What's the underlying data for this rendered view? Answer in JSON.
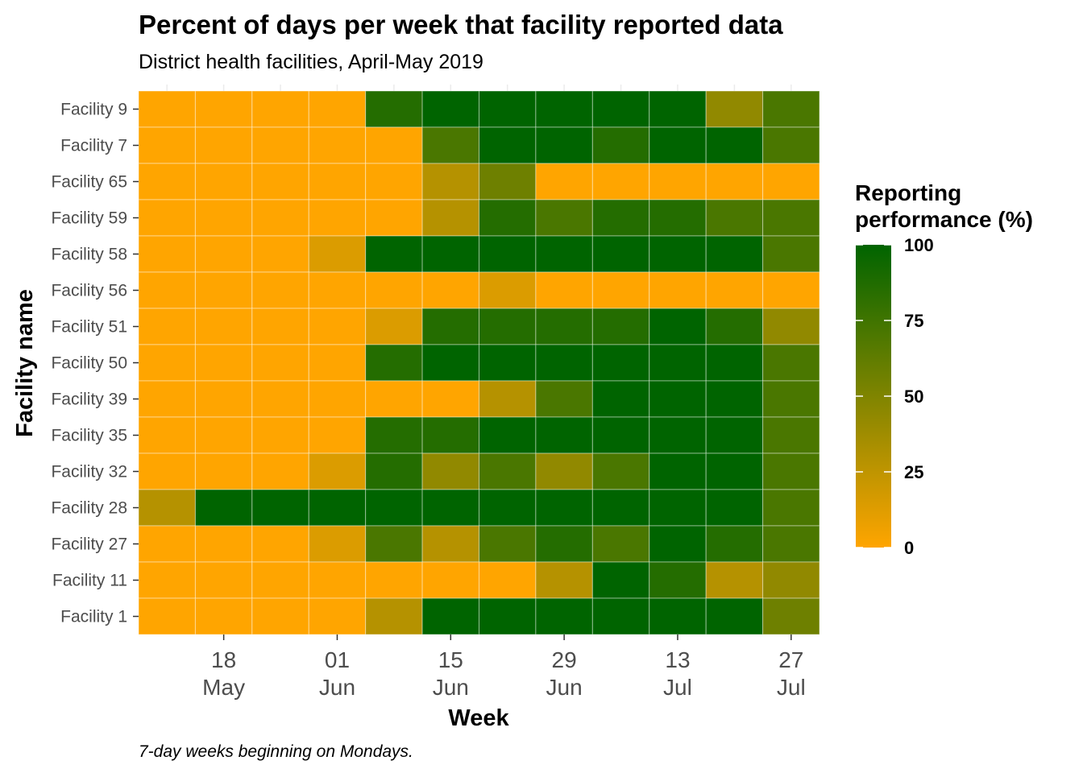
{
  "chart_data": {
    "type": "heatmap",
    "title": "Percent of days per week that facility reported data",
    "subtitle": "District health facilities, April-May 2019",
    "xlabel": "Week",
    "ylabel": "Facility name",
    "caption": "7-day weeks beginning on Mondays.",
    "x_tick_labels": [
      {
        "day": "18",
        "month": "May"
      },
      {
        "day": "01",
        "month": "Jun"
      },
      {
        "day": "15",
        "month": "Jun"
      },
      {
        "day": "29",
        "month": "Jun"
      },
      {
        "day": "13",
        "month": "Jul"
      },
      {
        "day": "27",
        "month": "Jul"
      }
    ],
    "facilities": [
      "Facility 9",
      "Facility 7",
      "Facility 65",
      "Facility 59",
      "Facility 58",
      "Facility 56",
      "Facility 51",
      "Facility 50",
      "Facility 39",
      "Facility 35",
      "Facility 32",
      "Facility 28",
      "Facility 27",
      "Facility 11",
      "Facility 1"
    ],
    "values": [
      [
        0,
        0,
        0,
        0,
        86,
        100,
        100,
        100,
        100,
        100,
        43,
        71
      ],
      [
        0,
        0,
        0,
        0,
        0,
        71,
        100,
        100,
        86,
        100,
        100,
        71
      ],
      [
        0,
        0,
        0,
        0,
        0,
        29,
        57,
        0,
        0,
        0,
        0,
        0
      ],
      [
        0,
        0,
        0,
        0,
        0,
        29,
        86,
        71,
        86,
        86,
        71,
        71
      ],
      [
        0,
        0,
        0,
        14,
        100,
        100,
        100,
        100,
        100,
        100,
        100,
        71
      ],
      [
        0,
        0,
        0,
        0,
        0,
        0,
        14,
        0,
        0,
        0,
        0,
        0
      ],
      [
        0,
        0,
        0,
        0,
        14,
        86,
        86,
        86,
        86,
        100,
        86,
        43
      ],
      [
        0,
        0,
        0,
        0,
        86,
        100,
        100,
        100,
        100,
        100,
        100,
        71
      ],
      [
        0,
        0,
        0,
        0,
        0,
        0,
        29,
        71,
        100,
        100,
        100,
        71
      ],
      [
        0,
        0,
        0,
        0,
        86,
        86,
        100,
        100,
        100,
        100,
        100,
        71
      ],
      [
        0,
        0,
        0,
        14,
        86,
        43,
        71,
        43,
        71,
        100,
        100,
        71
      ],
      [
        29,
        100,
        100,
        100,
        100,
        100,
        100,
        100,
        100,
        100,
        100,
        71
      ],
      [
        0,
        0,
        0,
        14,
        71,
        29,
        71,
        86,
        71,
        100,
        86,
        71
      ],
      [
        0,
        0,
        0,
        0,
        0,
        0,
        0,
        29,
        100,
        86,
        29,
        43
      ],
      [
        0,
        0,
        0,
        0,
        29,
        100,
        100,
        100,
        100,
        100,
        100,
        57
      ]
    ],
    "legend": {
      "title_line1": "Reporting",
      "title_line2": "performance (%)",
      "ticks": [
        "100",
        "75",
        "50",
        "25",
        "0"
      ],
      "range": [
        0,
        100
      ],
      "low_color": "#FFA500",
      "high_color": "#006400"
    }
  }
}
